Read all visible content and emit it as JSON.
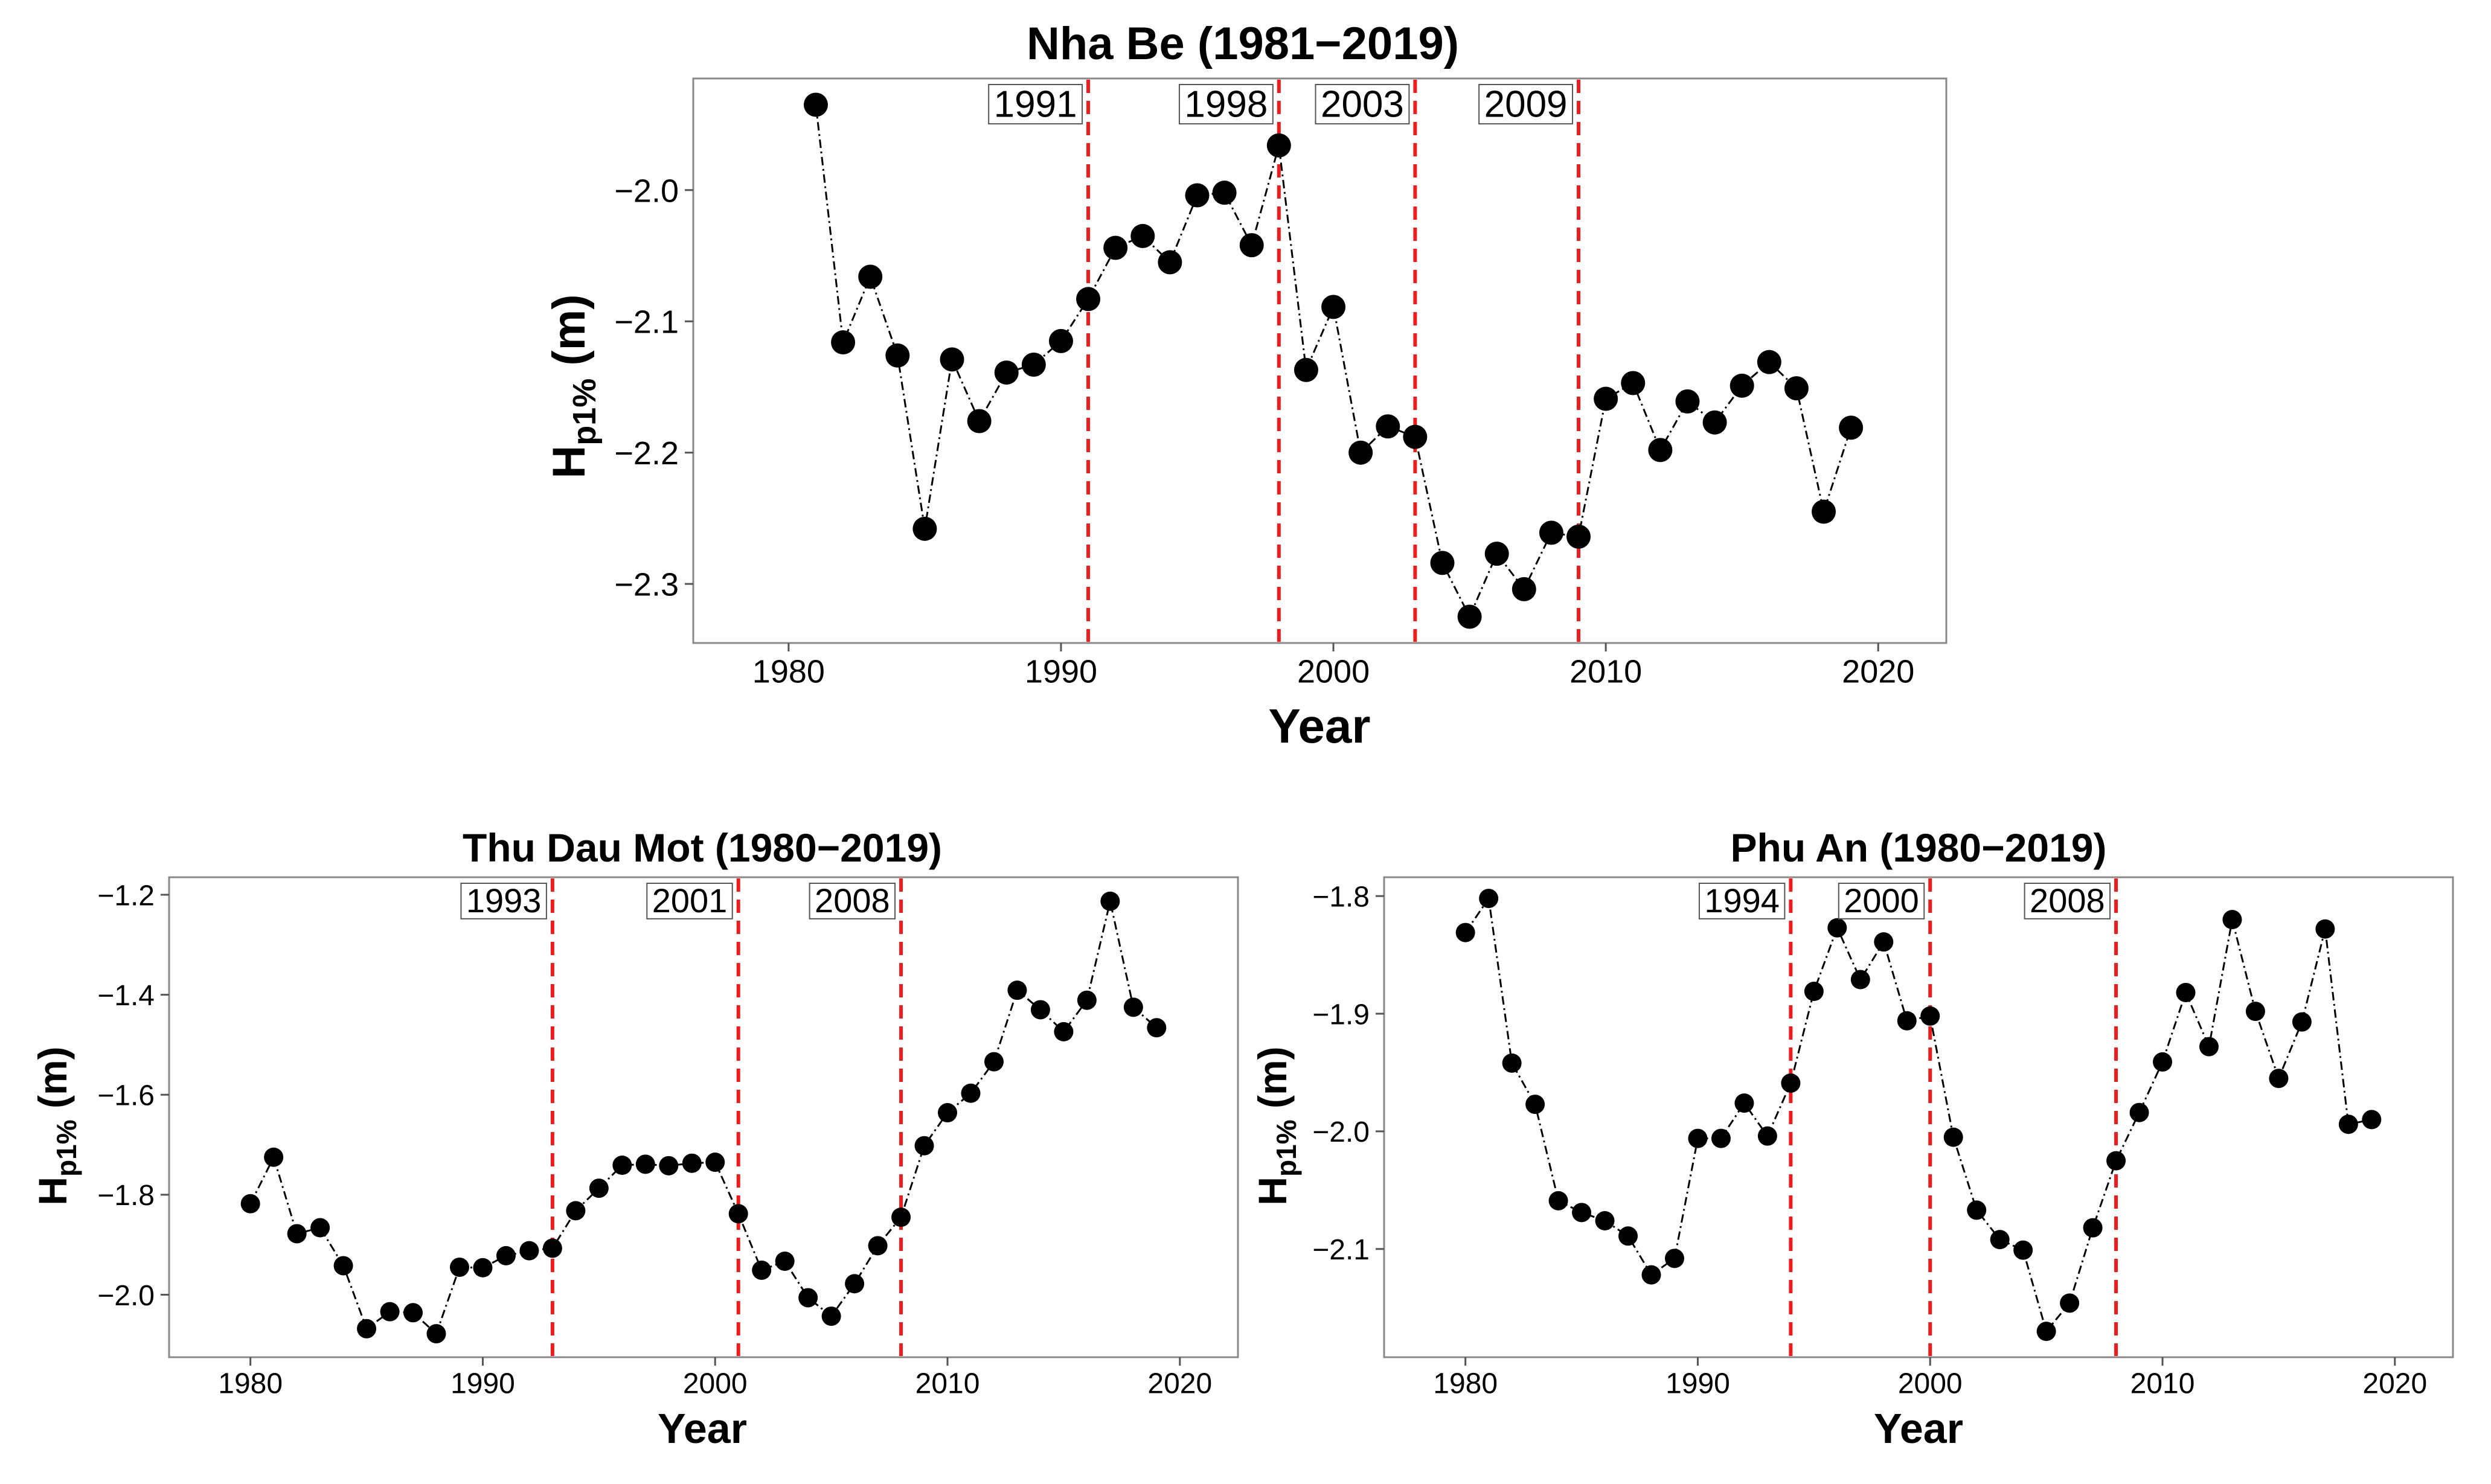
{
  "chart_data": [
    {
      "type": "scatter",
      "connected": true,
      "title": "Nha Be (1981−2019)",
      "xlabel": "Year",
      "ylabel_main": "H",
      "ylabel_sub": "p1%",
      "ylabel_unit": " (m)",
      "xlim": [
        1976.5,
        2022.5
      ],
      "ylim": [
        -2.345,
        -1.915
      ],
      "xticks": [
        1980,
        1990,
        2000,
        2010,
        2020
      ],
      "yticks": [
        -2.3,
        -2.2,
        -2.1,
        -2.0
      ],
      "ytick_labels": [
        "−2.3",
        "−2.2",
        "−2.1",
        "−2.0"
      ],
      "x": [
        1981,
        1982,
        1983,
        1984,
        1985,
        1986,
        1987,
        1988,
        1989,
        1990,
        1991,
        1992,
        1993,
        1994,
        1995,
        1996,
        1997,
        1998,
        1999,
        2000,
        2001,
        2002,
        2003,
        2004,
        2005,
        2006,
        2007,
        2008,
        2009,
        2010,
        2011,
        2012,
        2013,
        2014,
        2015,
        2016,
        2017,
        2018,
        2019
      ],
      "y": [
        -1.935,
        -2.116,
        -2.066,
        -2.126,
        -2.258,
        -2.129,
        -2.176,
        -2.139,
        -2.133,
        -2.115,
        -2.083,
        -2.044,
        -2.035,
        -2.055,
        -2.004,
        -2.002,
        -2.042,
        -1.966,
        -2.137,
        -2.089,
        -2.2,
        -2.18,
        -2.188,
        -2.284,
        -2.325,
        -2.277,
        -2.304,
        -2.261,
        -2.264,
        -2.159,
        -2.147,
        -2.198,
        -2.161,
        -2.177,
        -2.149,
        -2.131,
        -2.151,
        -2.245,
        -2.181
      ],
      "breakpoints": [
        1991,
        1998,
        2003,
        2009
      ],
      "breakpoint_labels": [
        "1991",
        "1998",
        "2003",
        "2009"
      ]
    },
    {
      "type": "scatter",
      "connected": true,
      "title": "Thu Dau Mot (1980−2019)",
      "xlabel": "Year",
      "ylabel_main": "H",
      "ylabel_sub": "p1%",
      "ylabel_unit": " (m)",
      "xlim": [
        1976.5,
        2022.5
      ],
      "ylim": [
        -2.125,
        -1.165
      ],
      "xticks": [
        1980,
        1990,
        2000,
        2010,
        2020
      ],
      "yticks": [
        -2.0,
        -1.8,
        -1.6,
        -1.4,
        -1.2
      ],
      "ytick_labels": [
        "−2.0",
        "−1.8",
        "−1.6",
        "−1.4",
        "−1.2"
      ],
      "x": [
        1980,
        1981,
        1982,
        1983,
        1984,
        1985,
        1986,
        1987,
        1988,
        1989,
        1990,
        1991,
        1992,
        1993,
        1994,
        1995,
        1996,
        1997,
        1998,
        1999,
        2000,
        2001,
        2002,
        2003,
        2004,
        2005,
        2006,
        2007,
        2008,
        2009,
        2010,
        2011,
        2012,
        2013,
        2014,
        2015,
        2016,
        2017,
        2018,
        2019
      ],
      "y": [
        -1.818,
        -1.725,
        -1.878,
        -1.866,
        -1.942,
        -2.068,
        -2.034,
        -2.036,
        -2.078,
        -1.945,
        -1.946,
        -1.922,
        -1.912,
        -1.907,
        -1.832,
        -1.787,
        -1.741,
        -1.739,
        -1.742,
        -1.737,
        -1.735,
        -1.838,
        -1.951,
        -1.933,
        -2.006,
        -2.043,
        -1.978,
        -1.902,
        -1.845,
        -1.702,
        -1.636,
        -1.597,
        -1.534,
        -1.391,
        -1.43,
        -1.474,
        -1.411,
        -1.213,
        -1.425,
        -1.466
      ],
      "breakpoints": [
        1993,
        2001,
        2008
      ],
      "breakpoint_labels": [
        "1993",
        "2001",
        "2008"
      ]
    },
    {
      "type": "scatter",
      "connected": true,
      "title": "Phu An (1980−2019)",
      "xlabel": "Year",
      "ylabel_main": "H",
      "ylabel_sub": "p1%",
      "ylabel_unit": " (m)",
      "xlim": [
        1976.5,
        2022.5
      ],
      "ylim": [
        -2.192,
        -1.784
      ],
      "xticks": [
        1980,
        1990,
        2000,
        2010,
        2020
      ],
      "yticks": [
        -2.1,
        -2.0,
        -1.9,
        -1.8
      ],
      "ytick_labels": [
        "−2.1",
        "−2.0",
        "−1.9",
        "−1.8"
      ],
      "x": [
        1980,
        1981,
        1982,
        1983,
        1984,
        1985,
        1986,
        1987,
        1988,
        1989,
        1990,
        1991,
        1992,
        1993,
        1994,
        1995,
        1996,
        1997,
        1998,
        1999,
        2000,
        2001,
        2002,
        2003,
        2004,
        2005,
        2006,
        2007,
        2008,
        2009,
        2010,
        2011,
        2012,
        2013,
        2014,
        2015,
        2016,
        2017,
        2018,
        2019
      ],
      "y": [
        -1.831,
        -1.802,
        -1.942,
        -1.977,
        -2.059,
        -2.069,
        -2.076,
        -2.089,
        -2.122,
        -2.108,
        -2.006,
        -2.006,
        -1.976,
        -2.004,
        -1.959,
        -1.881,
        -1.827,
        -1.871,
        -1.839,
        -1.906,
        -1.902,
        -2.005,
        -2.067,
        -2.092,
        -2.101,
        -2.17,
        -2.146,
        -2.082,
        -2.025,
        -1.984,
        -1.941,
        -1.882,
        -1.928,
        -1.82,
        -1.898,
        -1.955,
        -1.907,
        -1.828,
        -1.994,
        -1.99
      ],
      "breakpoints": [
        1994,
        2000,
        2008
      ],
      "breakpoint_labels": [
        "1994",
        "2000",
        "2008"
      ]
    }
  ],
  "colors": {
    "points": "#000000",
    "line": "#000000",
    "breakpoint_line": "#ee1c1c",
    "panel_border": "#888888",
    "label_box": "#555555"
  }
}
